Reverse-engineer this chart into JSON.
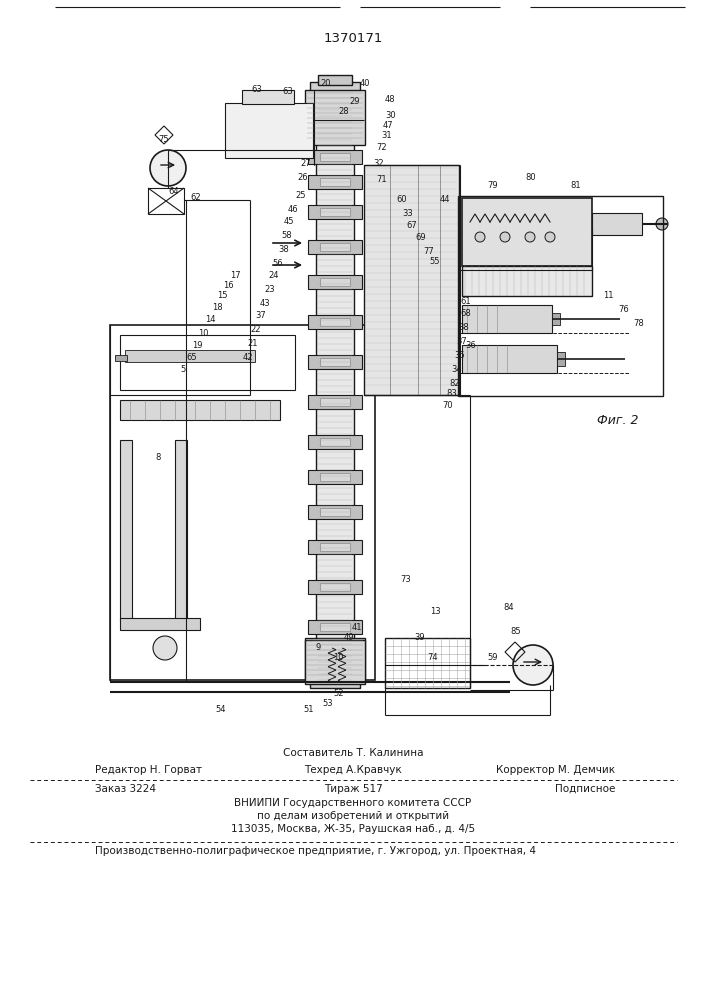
{
  "patent_number": "1370171",
  "fig_label": "Фиг. 2",
  "footer": {
    "sostavitel": "Составитель Т. Калинина",
    "redaktor": "Редактор Н. Горват",
    "tehred": "Техред А.Кравчук",
    "korrektor": "Корректор М. Демчик",
    "zakaz": "Заказ 3224",
    "tirazh": "Тираж 517",
    "podpisnoe": "Подписное",
    "vniipи_line1": "ВНИИПИ Государственного комитета СССР",
    "vniipи_line2": "по делам изобретений и открытий",
    "vniipи_line3": "113035, Москва, Ж-35, Раушская наб., д. 4/5",
    "proizv": "Производственно-полиграфическое предприятие, г. Ужгород, ул. Проектная, 4"
  },
  "bg_color": "#ffffff",
  "text_color": "#000000",
  "page_width": 7.07,
  "page_height": 10.0
}
